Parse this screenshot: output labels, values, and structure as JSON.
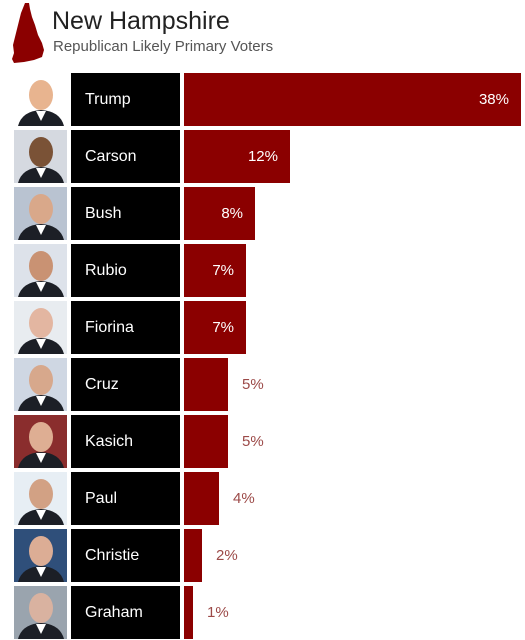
{
  "header": {
    "title": "New Hampshire",
    "subtitle": "Republican Likely Primary Voters",
    "icon": "new-hampshire-state-icon"
  },
  "colors": {
    "bar": "#8b0000",
    "name_box": "#000000",
    "outside_label": "#9c4a48"
  },
  "chart_data": {
    "type": "bar",
    "orientation": "horizontal",
    "title": "New Hampshire",
    "subtitle": "Republican Likely Primary Voters",
    "categories": [
      "Trump",
      "Carson",
      "Bush",
      "Rubio",
      "Fiorina",
      "Cruz",
      "Kasich",
      "Paul",
      "Christie",
      "Graham"
    ],
    "values": [
      38,
      12,
      8,
      7,
      7,
      5,
      5,
      4,
      2,
      1
    ],
    "labels": [
      "38%",
      "12%",
      "8%",
      "7%",
      "7%",
      "5%",
      "5%",
      "4%",
      "2%",
      "1%"
    ],
    "unit": "%",
    "xlim": [
      0,
      38
    ],
    "grid": false,
    "legend": "none"
  }
}
